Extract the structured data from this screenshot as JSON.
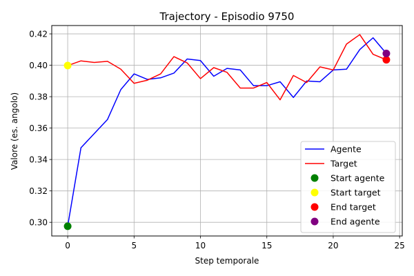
{
  "chart_data": {
    "type": "line",
    "title": "Trajectory - Episodio 9750",
    "xlabel": "Step temporale",
    "ylabel": "Valore (es. angolo)",
    "xlim": [
      -1.2,
      25.2
    ],
    "ylim": [
      0.2913,
      0.4253
    ],
    "xticks": [
      0,
      5,
      10,
      15,
      20,
      25
    ],
    "yticks": [
      0.3,
      0.32,
      0.34,
      0.36,
      0.38,
      0.4,
      0.42
    ],
    "grid": true,
    "legend_position": "lower-right",
    "series": [
      {
        "name": "Agente",
        "kind": "line",
        "color": "#0000ff",
        "x": [
          0,
          1,
          2,
          3,
          4,
          5,
          6,
          7,
          8,
          9,
          10,
          11,
          12,
          13,
          14,
          15,
          16,
          17,
          18,
          19,
          20,
          21,
          22,
          23,
          24
        ],
        "y": [
          0.2975,
          0.3475,
          0.3565,
          0.3655,
          0.3845,
          0.3945,
          0.391,
          0.392,
          0.395,
          0.404,
          0.403,
          0.393,
          0.398,
          0.397,
          0.387,
          0.387,
          0.3895,
          0.3795,
          0.39,
          0.3895,
          0.397,
          0.3975,
          0.41,
          0.4175,
          0.4075
        ]
      },
      {
        "name": "Target",
        "kind": "line",
        "color": "#ff0000",
        "x": [
          0,
          1,
          2,
          3,
          4,
          5,
          6,
          7,
          8,
          9,
          10,
          11,
          12,
          13,
          14,
          15,
          16,
          17,
          18,
          19,
          20,
          21,
          22,
          23,
          24
        ],
        "y": [
          0.3998,
          0.4028,
          0.4018,
          0.4025,
          0.3975,
          0.3885,
          0.3905,
          0.3945,
          0.4055,
          0.4015,
          0.3915,
          0.3985,
          0.3955,
          0.3855,
          0.3855,
          0.389,
          0.378,
          0.3935,
          0.389,
          0.399,
          0.397,
          0.4135,
          0.4195,
          0.407,
          0.4035
        ]
      },
      {
        "name": "Start agente",
        "kind": "point",
        "color": "#008000",
        "x": [
          0
        ],
        "y": [
          0.2975
        ]
      },
      {
        "name": "Start target",
        "kind": "point",
        "color": "#ffff00",
        "x": [
          0
        ],
        "y": [
          0.3998
        ]
      },
      {
        "name": "End target",
        "kind": "point",
        "color": "#ff0000",
        "x": [
          24
        ],
        "y": [
          0.4035
        ]
      },
      {
        "name": "End agente",
        "kind": "point",
        "color": "#800080",
        "x": [
          24
        ],
        "y": [
          0.4075
        ]
      }
    ]
  }
}
